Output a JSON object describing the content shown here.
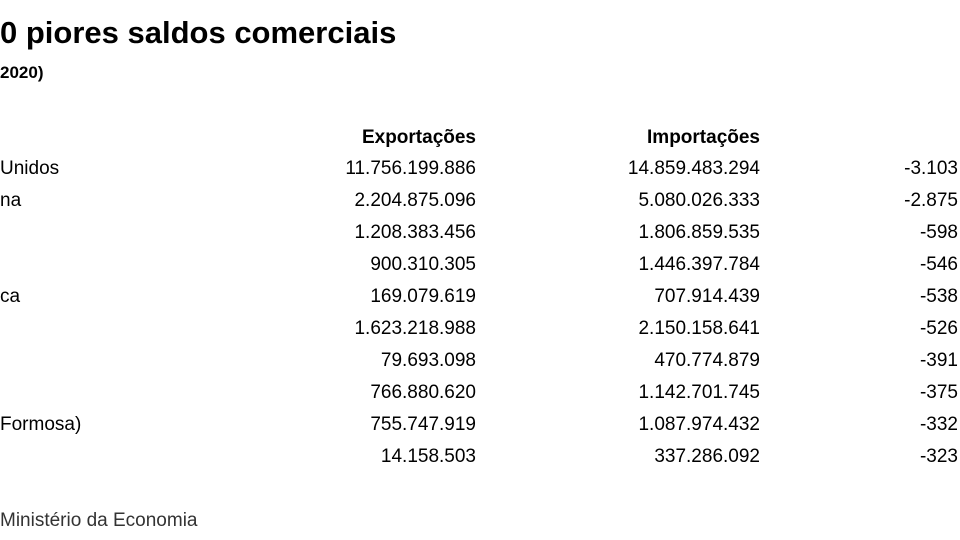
{
  "header": {
    "title": "0 piores saldos comerciais",
    "subtitle": "2020)"
  },
  "table": {
    "columns": [
      null,
      "Exportações",
      "Importações",
      null
    ],
    "rows": [
      [
        "Unidos",
        "11.756.199.886",
        "14.859.483.294",
        "-3.103"
      ],
      [
        "na",
        "2.204.875.096",
        "5.080.026.333",
        "-2.875"
      ],
      [
        null,
        "1.208.383.456",
        "1.806.859.535",
        "-598"
      ],
      [
        null,
        "900.310.305",
        "1.446.397.784",
        "-546"
      ],
      [
        "ca",
        "169.079.619",
        "707.914.439",
        "-538"
      ],
      [
        null,
        "1.623.218.988",
        "2.150.158.641",
        "-526"
      ],
      [
        null,
        "79.693.098",
        "470.774.879",
        "-391"
      ],
      [
        null,
        "766.880.620",
        "1.142.701.745",
        "-375"
      ],
      [
        "Formosa)",
        "755.747.919",
        "1.087.974.432",
        "-332"
      ],
      [
        null,
        "14.158.503",
        "337.286.092",
        "-323"
      ]
    ]
  },
  "footer": {
    "source": "Ministério da Economia"
  }
}
